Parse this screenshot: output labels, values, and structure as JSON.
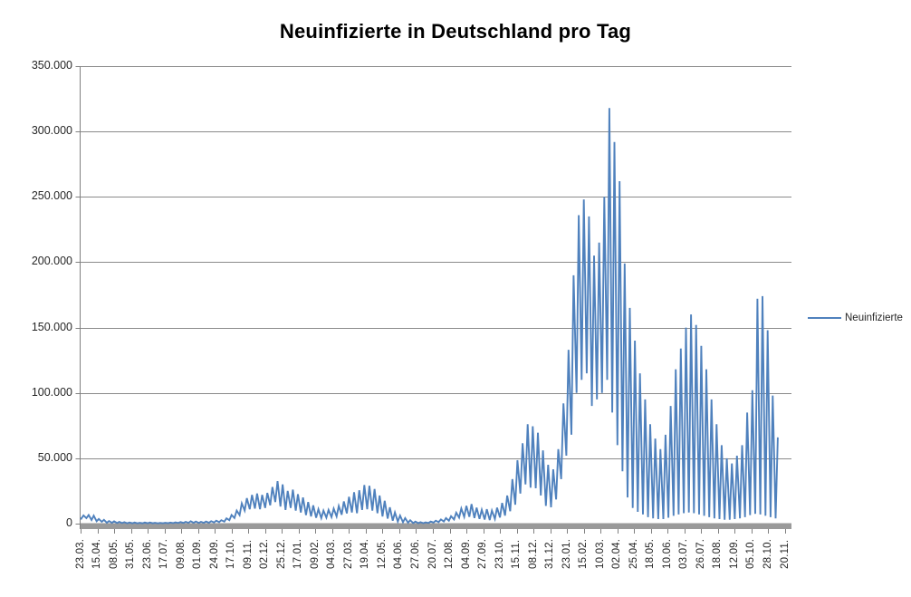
{
  "chart_data": {
    "type": "line",
    "title": "Neuinfizierte in Deutschland pro Tag",
    "legend": {
      "position": "right",
      "entries": [
        "Neuinfizierte"
      ]
    },
    "x_axis": {
      "tick_labels": [
        "23.03.",
        "15.04.",
        "08.05.",
        "31.05.",
        "23.06.",
        "17.07.",
        "09.08.",
        "01.09.",
        "24.09.",
        "17.10.",
        "09.11.",
        "02.12.",
        "25.12.",
        "17.01.",
        "09.02.",
        "04.03.",
        "27.03.",
        "19.04.",
        "12.05.",
        "04.06.",
        "27.06.",
        "20.07.",
        "12.08.",
        "04.09.",
        "27.09.",
        "23.10.",
        "15.11.",
        "08.12.",
        "31.12.",
        "23.01.",
        "15.02.",
        "10.03.",
        "02.04.",
        "25.04.",
        "18.05.",
        "10.06.",
        "03.07.",
        "26.07.",
        "18.08.",
        "12.09.",
        "05.10.",
        "28.10.",
        "20.11."
      ],
      "points_per_label": 23,
      "total_points": 966
    },
    "y_axis": {
      "tick_labels": [
        "0",
        "50.000",
        "100.000",
        "150.000",
        "200.000",
        "250.000",
        "300.000",
        "350.000"
      ],
      "tick_values": [
        0,
        50000,
        100000,
        150000,
        200000,
        250000,
        300000,
        350000
      ],
      "range": [
        0,
        350000
      ]
    },
    "gridlines": "horizontal-major",
    "series": [
      {
        "name": "Neuinfizierte",
        "color": "#4F81BD",
        "start_value": 4500,
        "note": "daily values oscillate weekly; weekly_lo_hi lists approx [weekend-low, midweek-high] per week from 23.03.2020 to 20.11.2022",
        "weekly_lo_hi": [
          [
            3800,
            6300
          ],
          [
            4200,
            6600
          ],
          [
            2800,
            6100
          ],
          [
            1800,
            3600
          ],
          [
            1400,
            2900
          ],
          [
            700,
            2000
          ],
          [
            600,
            1800
          ],
          [
            500,
            1300
          ],
          [
            400,
            1100
          ],
          [
            300,
            900
          ],
          [
            250,
            800
          ],
          [
            200,
            600
          ],
          [
            250,
            800
          ],
          [
            300,
            900
          ],
          [
            250,
            600
          ],
          [
            200,
            550
          ],
          [
            250,
            650
          ],
          [
            350,
            850
          ],
          [
            450,
            1000
          ],
          [
            500,
            1200
          ],
          [
            550,
            1400
          ],
          [
            650,
            1800
          ],
          [
            600,
            1600
          ],
          [
            550,
            1400
          ],
          [
            600,
            1600
          ],
          [
            700,
            1900
          ],
          [
            900,
            2200
          ],
          [
            1100,
            2600
          ],
          [
            1500,
            4000
          ],
          [
            2600,
            6600
          ],
          [
            4300,
            10000
          ],
          [
            6500,
            15500
          ],
          [
            10000,
            19500
          ],
          [
            11000,
            22000
          ],
          [
            11500,
            23000
          ],
          [
            11000,
            22000
          ],
          [
            12000,
            23500
          ],
          [
            14000,
            28000
          ],
          [
            16500,
            32500
          ],
          [
            13000,
            30000
          ],
          [
            10500,
            25000
          ],
          [
            12000,
            26000
          ],
          [
            10000,
            22500
          ],
          [
            8500,
            20000
          ],
          [
            6500,
            16500
          ],
          [
            5500,
            14000
          ],
          [
            4500,
            11000
          ],
          [
            4200,
            10000
          ],
          [
            4600,
            10500
          ],
          [
            5000,
            11500
          ],
          [
            5500,
            13500
          ],
          [
            6800,
            17000
          ],
          [
            7800,
            20500
          ],
          [
            8500,
            24000
          ],
          [
            8000,
            25500
          ],
          [
            10500,
            29500
          ],
          [
            11000,
            29000
          ],
          [
            10000,
            26500
          ],
          [
            8000,
            21500
          ],
          [
            5500,
            17500
          ],
          [
            3800,
            12500
          ],
          [
            2200,
            8500
          ],
          [
            1600,
            6200
          ],
          [
            1100,
            4200
          ],
          [
            700,
            2600
          ],
          [
            450,
            1600
          ],
          [
            350,
            1100
          ],
          [
            350,
            1000
          ],
          [
            500,
            1600
          ],
          [
            800,
            2200
          ],
          [
            1200,
            3200
          ],
          [
            1600,
            4200
          ],
          [
            2200,
            5700
          ],
          [
            3200,
            8400
          ],
          [
            4600,
            11600
          ],
          [
            5200,
            13600
          ],
          [
            5200,
            15000
          ],
          [
            4300,
            12200
          ],
          [
            3600,
            10600
          ],
          [
            3100,
            11000
          ],
          [
            2700,
            10000
          ],
          [
            3600,
            12200
          ],
          [
            4700,
            15800
          ],
          [
            6200,
            21500
          ],
          [
            9500,
            34000
          ],
          [
            14500,
            48500
          ],
          [
            23000,
            61500
          ],
          [
            30000,
            76000
          ],
          [
            27500,
            74500
          ],
          [
            27000,
            69500
          ],
          [
            21500,
            56000
          ],
          [
            13500,
            45000
          ],
          [
            12500,
            41500
          ],
          [
            18500,
            57000
          ],
          [
            34000,
            92000
          ],
          [
            52000,
            133000
          ],
          [
            68000,
            190000
          ],
          [
            100000,
            236000
          ],
          [
            110000,
            248000
          ],
          [
            115000,
            235000
          ],
          [
            90000,
            205000
          ],
          [
            95000,
            215000
          ],
          [
            100000,
            250000
          ],
          [
            110000,
            318000
          ],
          [
            85000,
            292000
          ],
          [
            60000,
            262000
          ],
          [
            40000,
            199000
          ],
          [
            20000,
            165000
          ],
          [
            12000,
            140000
          ],
          [
            9000,
            115000
          ],
          [
            7000,
            95000
          ],
          [
            5000,
            76000
          ],
          [
            4000,
            65000
          ],
          [
            3500,
            57000
          ],
          [
            3500,
            68000
          ],
          [
            4500,
            90000
          ],
          [
            6000,
            118000
          ],
          [
            7000,
            134000
          ],
          [
            8000,
            150000
          ],
          [
            8500,
            160000
          ],
          [
            8000,
            152000
          ],
          [
            7000,
            136000
          ],
          [
            6000,
            118000
          ],
          [
            5000,
            95000
          ],
          [
            4000,
            76000
          ],
          [
            3500,
            60000
          ],
          [
            3000,
            50000
          ],
          [
            3000,
            46000
          ],
          [
            3500,
            52000
          ],
          [
            4000,
            60000
          ],
          [
            5000,
            85000
          ],
          [
            6500,
            102000
          ],
          [
            7500,
            172000
          ],
          [
            7000,
            174000
          ],
          [
            6000,
            148000
          ],
          [
            5000,
            98000
          ],
          [
            4000,
            66000
          ]
        ]
      }
    ],
    "colors": {
      "line": "#4F81BD",
      "gridline": "#8A8A8A",
      "axis": "#808080",
      "axis_bar": "#9A9A9A",
      "text": "#262626",
      "background": "#FFFFFF"
    }
  }
}
